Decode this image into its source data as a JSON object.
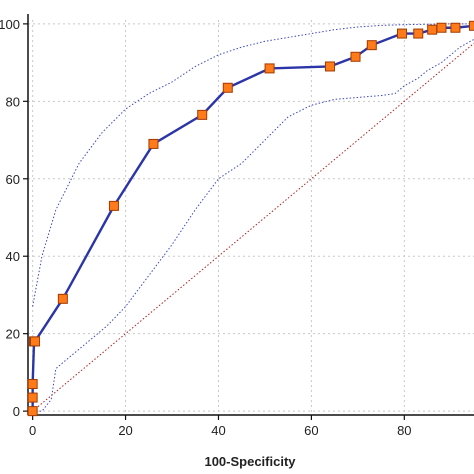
{
  "chart_data": {
    "type": "line",
    "title": "",
    "xlabel": "100-Specificity",
    "ylabel": "",
    "xlim": [
      -1,
      95
    ],
    "ylim": [
      -1,
      101
    ],
    "x_ticks": [
      "0",
      "20",
      "40",
      "60",
      "80"
    ],
    "y_ticks": [
      "0",
      "20",
      "40",
      "60",
      "80",
      "100"
    ],
    "x_tick_values": [
      0,
      20,
      40,
      60,
      80
    ],
    "y_tick_values": [
      0,
      20,
      40,
      60,
      80,
      100
    ],
    "grid": true,
    "series": [
      {
        "role": "roc-curve",
        "style": "solid-with-square-markers",
        "x": [
          0,
          0,
          0,
          0.3,
          0.5,
          6.5,
          17.5,
          26,
          36.5,
          42,
          51,
          64,
          69.5,
          73,
          79.5,
          83,
          86,
          88,
          91,
          95
        ],
        "y": [
          0,
          3.5,
          7,
          18,
          18,
          29,
          53,
          69,
          76.5,
          83.5,
          88.5,
          89,
          91.5,
          94.5,
          97.5,
          97.5,
          98.5,
          99,
          99,
          99.5
        ]
      },
      {
        "role": "upper-confidence-bound",
        "style": "dotted",
        "x": [
          0,
          2,
          5,
          10,
          15,
          20,
          25,
          30,
          35,
          40,
          45,
          50,
          55,
          60,
          65,
          70,
          75,
          80,
          85,
          90,
          95
        ],
        "y": [
          27,
          40,
          52,
          64,
          72,
          78,
          82,
          85,
          89,
          92,
          94,
          95.5,
          96.5,
          97.5,
          98.5,
          99.2,
          99.6,
          99.8,
          99.9,
          100,
          100
        ]
      },
      {
        "role": "lower-confidence-bound",
        "style": "dotted",
        "x": [
          0,
          2,
          4,
          5,
          8,
          12,
          16,
          20,
          25,
          30,
          35,
          40,
          45,
          50,
          55,
          60,
          65,
          70,
          75,
          78,
          80,
          83,
          85,
          88,
          90,
          92,
          95
        ],
        "y": [
          0,
          0,
          3,
          11,
          14,
          18,
          22,
          27,
          35,
          43,
          52,
          60,
          64,
          70,
          76,
          79,
          80.5,
          81,
          81.5,
          82,
          84,
          86,
          88,
          90,
          92,
          94,
          96
        ]
      },
      {
        "role": "reference-diagonal",
        "style": "dotted",
        "x": [
          0,
          95
        ],
        "y": [
          0,
          95
        ]
      }
    ]
  },
  "colors": {
    "roc_line": "#2b35a8",
    "marker_fill": "#ff7a18",
    "marker_stroke": "#a33a00",
    "ci_line": "#3b48c8",
    "diagonal": "#b22222",
    "grid": "#c8c8c8",
    "axis": "#111111"
  }
}
